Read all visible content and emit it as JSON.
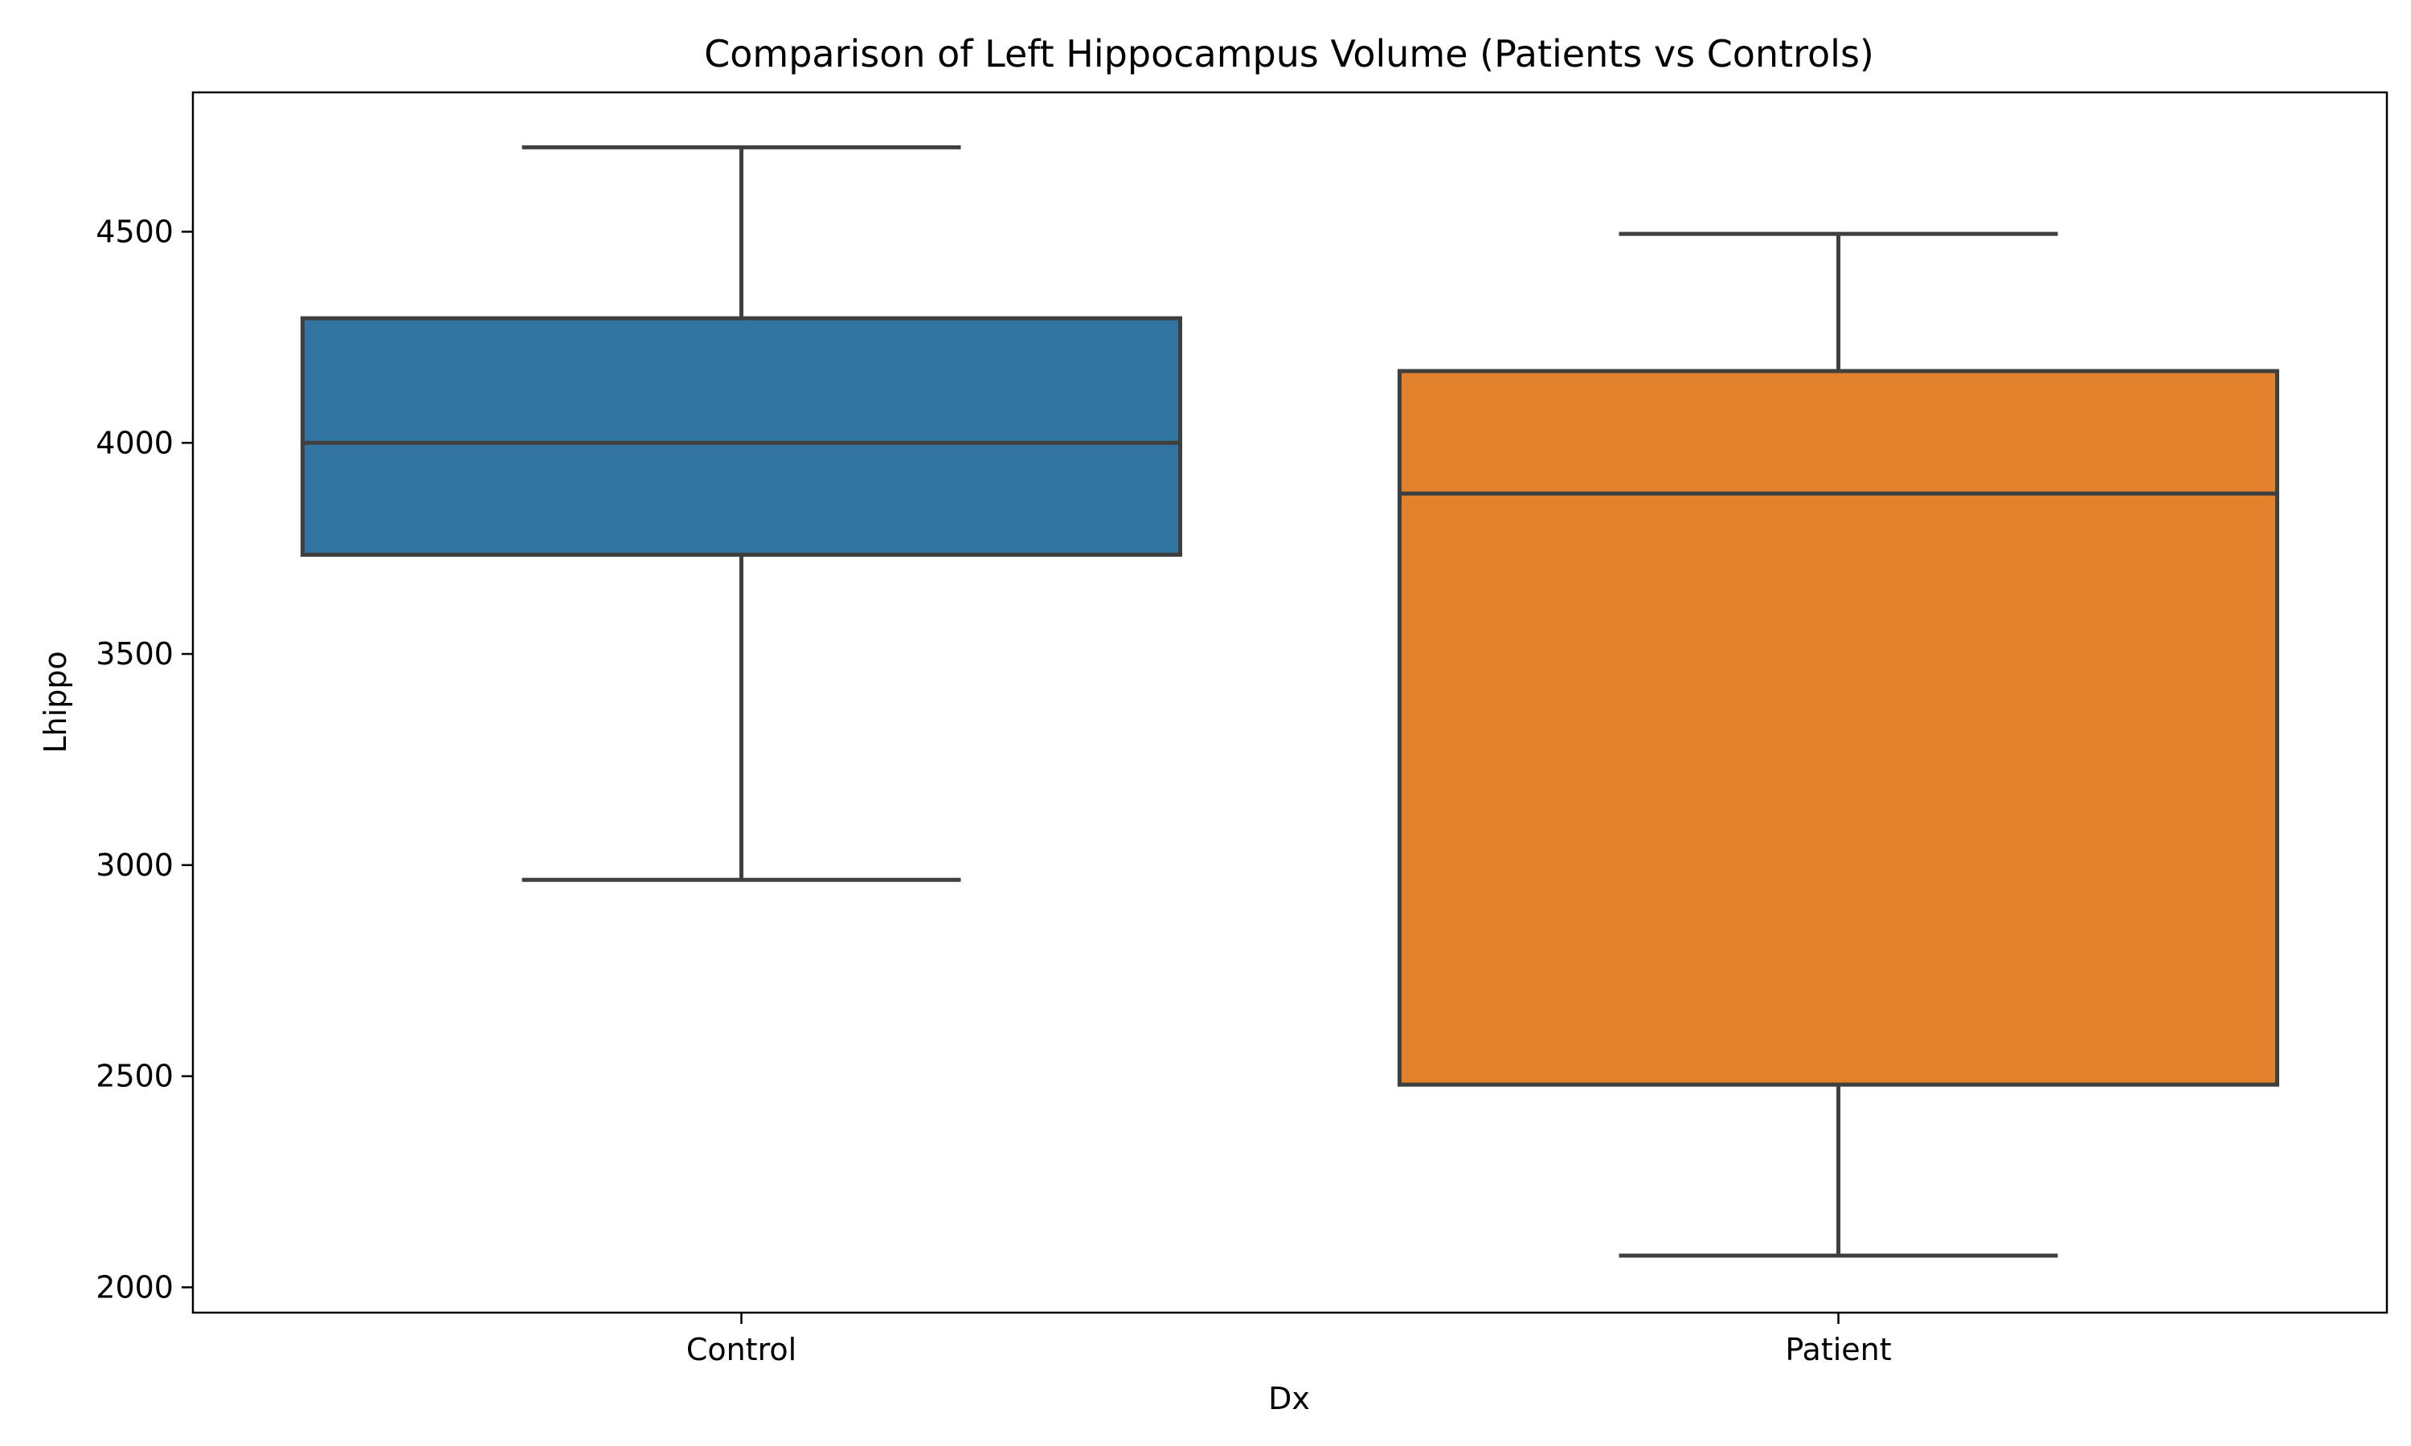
{
  "chart_data": {
    "type": "box",
    "title": "Comparison of Left Hippocampus Volume (Patients vs Controls)",
    "xlabel": "Dx",
    "ylabel": "Lhippo",
    "categories": [
      "Control",
      "Patient"
    ],
    "ylim": [
      1940,
      4830
    ],
    "yticks": [
      2000,
      2500,
      3000,
      3500,
      4000,
      4500
    ],
    "ytick_labels": [
      "2000",
      "2500",
      "3000",
      "3500",
      "4000",
      "4500"
    ],
    "boxes": [
      {
        "category": "Control",
        "whisker_low": 2965,
        "q1": 3735,
        "median": 4000,
        "q3": 4295,
        "whisker_high": 4700,
        "color": "#3274a1"
      },
      {
        "category": "Patient",
        "whisker_low": 2075,
        "q1": 2480,
        "median": 3880,
        "q3": 4170,
        "whisker_high": 4495,
        "color": "#e1812c"
      }
    ],
    "grid": false,
    "legend": "none"
  }
}
